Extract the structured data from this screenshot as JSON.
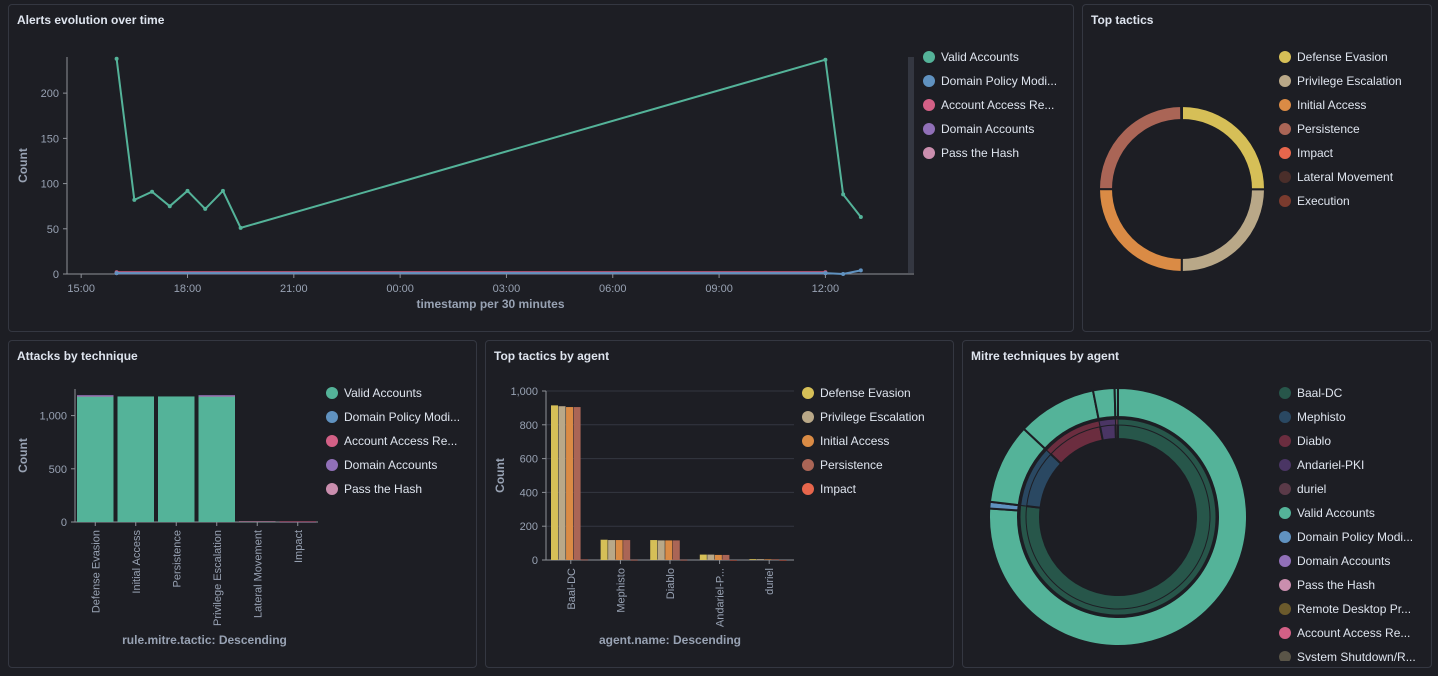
{
  "colors": {
    "valid_accounts": "#54b399",
    "domain_policy": "#6092c0",
    "account_access": "#d36086",
    "domain_accounts": "#9170b8",
    "pass_the_hash": "#ca8eae",
    "defense_evasion": "#d6bf57",
    "privilege_escalation": "#b9a888",
    "initial_access": "#da8b45",
    "persistence": "#aa6556",
    "impact": "#e7664c",
    "lateral_movement": "#4a2e2a",
    "execution": "#7a3b2e"
  },
  "panels": {
    "alerts": {
      "title": "Alerts evolution over time",
      "legend": [
        {
          "label": "Valid Accounts",
          "color": "#54b399"
        },
        {
          "label": "Domain Policy Modi...",
          "color": "#6092c0"
        },
        {
          "label": "Account Access Re...",
          "color": "#d36086"
        },
        {
          "label": "Domain Accounts",
          "color": "#9170b8"
        },
        {
          "label": "Pass the Hash",
          "color": "#ca8eae"
        }
      ]
    },
    "top_tactics": {
      "title": "Top tactics",
      "legend": [
        {
          "label": "Defense Evasion",
          "color": "#d6bf57"
        },
        {
          "label": "Privilege Escalation",
          "color": "#b9a888"
        },
        {
          "label": "Initial Access",
          "color": "#da8b45"
        },
        {
          "label": "Persistence",
          "color": "#aa6556"
        },
        {
          "label": "Impact",
          "color": "#e7664c"
        },
        {
          "label": "Lateral Movement",
          "color": "#4a2e2a"
        },
        {
          "label": "Execution",
          "color": "#7a3b2e"
        }
      ]
    },
    "attacks": {
      "title": "Attacks by technique",
      "legend": [
        {
          "label": "Valid Accounts",
          "color": "#54b399"
        },
        {
          "label": "Domain Policy Modi...",
          "color": "#6092c0"
        },
        {
          "label": "Account Access Re...",
          "color": "#d36086"
        },
        {
          "label": "Domain Accounts",
          "color": "#9170b8"
        },
        {
          "label": "Pass the Hash",
          "color": "#ca8eae"
        }
      ]
    },
    "tactics_agent": {
      "title": "Top tactics by agent",
      "legend": [
        {
          "label": "Defense Evasion",
          "color": "#d6bf57"
        },
        {
          "label": "Privilege Escalation",
          "color": "#b9a888"
        },
        {
          "label": "Initial Access",
          "color": "#da8b45"
        },
        {
          "label": "Persistence",
          "color": "#aa6556"
        },
        {
          "label": "Impact",
          "color": "#e7664c"
        }
      ]
    },
    "mitre_agent": {
      "title": "Mitre techniques by agent",
      "legend": [
        {
          "label": "Baal-DC",
          "color": "#27564a"
        },
        {
          "label": "Mephisto",
          "color": "#2a4862"
        },
        {
          "label": "Diablo",
          "color": "#6b2d3f"
        },
        {
          "label": "Andariel-PKI",
          "color": "#4a3564"
        },
        {
          "label": "duriel",
          "color": "#5a3a48"
        },
        {
          "label": "Valid Accounts",
          "color": "#54b399"
        },
        {
          "label": "Domain Policy Modi...",
          "color": "#6092c0"
        },
        {
          "label": "Domain Accounts",
          "color": "#9170b8"
        },
        {
          "label": "Pass the Hash",
          "color": "#ca8eae"
        },
        {
          "label": "Remote Desktop Pr...",
          "color": "#6b5a2c"
        },
        {
          "label": "Account Access Re...",
          "color": "#d36086"
        },
        {
          "label": "System Shutdown/R...",
          "color": "#5a5548"
        }
      ]
    }
  },
  "chart_data": [
    {
      "id": "alerts",
      "type": "line",
      "title": "Alerts evolution over time",
      "xlabel": "timestamp per 30 minutes",
      "ylabel": "Count",
      "x_ticks": [
        "15:00",
        "18:00",
        "21:00",
        "00:00",
        "03:00",
        "06:00",
        "09:00",
        "12:00"
      ],
      "x_tick_hours": [
        15,
        18,
        21,
        24,
        27,
        30,
        33,
        36
      ],
      "x_range_hours": [
        14.6,
        38.5
      ],
      "y_ticks": [
        0,
        50,
        100,
        150,
        200
      ],
      "ylim": [
        0,
        240
      ],
      "series": [
        {
          "name": "Valid Accounts",
          "color": "#54b399",
          "x": [
            16,
            16.5,
            17,
            17.5,
            18,
            18.5,
            19,
            19.5,
            36,
            36.5,
            37
          ],
          "values": [
            238,
            82,
            91,
            75,
            92,
            72,
            92,
            51,
            237,
            88,
            63
          ]
        },
        {
          "name": "Domain Policy Modi...",
          "color": "#6092c0",
          "x": [
            16,
            36,
            36.5,
            37
          ],
          "values": [
            1,
            1,
            0,
            4
          ]
        },
        {
          "name": "Account Access Re...",
          "color": "#d36086",
          "x": [
            16,
            36
          ],
          "values": [
            2,
            2
          ]
        },
        {
          "name": "Domain Accounts",
          "color": "#9170b8",
          "x": [
            16,
            36
          ],
          "values": [
            1,
            1
          ]
        },
        {
          "name": "Pass the Hash",
          "color": "#ca8eae",
          "x": [
            16,
            36
          ],
          "values": [
            1,
            1
          ]
        }
      ]
    },
    {
      "id": "top_tactics",
      "type": "pie",
      "title": "Top tactics",
      "categories": [
        "Defense Evasion",
        "Privilege Escalation",
        "Initial Access",
        "Persistence",
        "Impact",
        "Lateral Movement",
        "Execution"
      ],
      "values": [
        1190,
        1185,
        1183,
        1180,
        4,
        2,
        1
      ],
      "colors": [
        "#d6bf57",
        "#b9a888",
        "#da8b45",
        "#aa6556",
        "#e7664c",
        "#4a2e2a",
        "#7a3b2e"
      ]
    },
    {
      "id": "attacks",
      "type": "bar",
      "title": "Attacks by technique",
      "xlabel": "rule.mitre.tactic: Descending",
      "ylabel": "Count",
      "categories": [
        "Defense Evasion",
        "Initial Access",
        "Persistence",
        "Privilege Escalation",
        "Lateral Movement",
        "Impact"
      ],
      "y_ticks": [
        0,
        500,
        1000
      ],
      "ylim": [
        0,
        1250
      ],
      "series": [
        {
          "name": "Valid Accounts",
          "color": "#54b399",
          "values": [
            1180,
            1180,
            1180,
            1180,
            4,
            2
          ]
        },
        {
          "name": "Domain Policy Modi...",
          "color": "#6092c0",
          "values": [
            4,
            0,
            0,
            4,
            0,
            1
          ]
        },
        {
          "name": "Account Access Re...",
          "color": "#d36086",
          "values": [
            4,
            0,
            0,
            4,
            0,
            2
          ]
        },
        {
          "name": "Domain Accounts",
          "color": "#9170b8",
          "values": [
            4,
            0,
            0,
            4,
            0,
            0
          ]
        },
        {
          "name": "Pass the Hash",
          "color": "#ca8eae",
          "values": [
            0,
            0,
            0,
            0,
            2,
            0
          ]
        }
      ]
    },
    {
      "id": "tactics_agent",
      "type": "bar",
      "title": "Top tactics by agent",
      "xlabel": "agent.name: Descending",
      "ylabel": "Count",
      "categories": [
        "Baal-DC",
        "Mephisto",
        "Diablo",
        "Andariel-P...",
        "duriel"
      ],
      "y_ticks": [
        0,
        200,
        400,
        600,
        800,
        "1,000"
      ],
      "ylim": [
        0,
        1000
      ],
      "series": [
        {
          "name": "Defense Evasion",
          "color": "#d6bf57",
          "values": [
            915,
            120,
            118,
            32,
            5
          ]
        },
        {
          "name": "Privilege Escalation",
          "color": "#b9a888",
          "values": [
            910,
            118,
            116,
            32,
            5
          ]
        },
        {
          "name": "Initial Access",
          "color": "#da8b45",
          "values": [
            905,
            118,
            116,
            30,
            4
          ]
        },
        {
          "name": "Persistence",
          "color": "#aa6556",
          "values": [
            905,
            118,
            116,
            30,
            4
          ]
        },
        {
          "name": "Impact",
          "color": "#e7664c",
          "values": [
            2,
            1,
            1,
            0,
            0
          ]
        }
      ]
    },
    {
      "id": "mitre_agent",
      "type": "pie",
      "title": "Mitre techniques by agent",
      "inner": {
        "categories": [
          "Baal-DC",
          "Mephisto",
          "Diablo",
          "Andariel-PKI",
          "duriel"
        ],
        "values": [
          915,
          120,
          118,
          32,
          5
        ],
        "colors": [
          "#27564a",
          "#2a4862",
          "#6b2d3f",
          "#4a3564",
          "#5a3a48"
        ]
      },
      "outer": {
        "parents": [
          "Baal-DC",
          "Baal-DC",
          "Mephisto",
          "Diablo",
          "Andariel-PKI",
          "duriel"
        ],
        "categories": [
          "Valid Accounts",
          "Domain Policy Modi...",
          "Valid Accounts",
          "Valid Accounts",
          "Valid Accounts",
          "Valid Accounts"
        ],
        "values": [
          905,
          10,
          120,
          118,
          32,
          5
        ],
        "colors": [
          "#54b399",
          "#6092c0",
          "#54b399",
          "#54b399",
          "#54b399",
          "#54b399"
        ]
      }
    }
  ]
}
